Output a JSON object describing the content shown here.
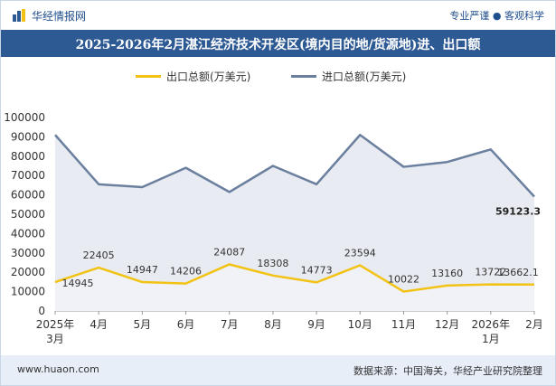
{
  "header": {
    "brand": "华经情报网",
    "tagline": "专业严谨 ● 客观科学"
  },
  "title": "2025-2026年2月湛江经济技术开发区(境内目的地/货源地)进、出口额",
  "footer": {
    "url": "www.huaon.com",
    "source": "数据来源：中国海关，华经产业研究院整理"
  },
  "colors": {
    "export": "#f2c314",
    "import": "#6b7f9e",
    "area_fill": "#e4e8ef",
    "title_bg": "#2e5a94",
    "footer_bg": "#e7eef8"
  },
  "chart_data": {
    "type": "line",
    "categories": [
      "2025年3月",
      "4月",
      "5月",
      "6月",
      "7月",
      "8月",
      "9月",
      "10月",
      "11月",
      "12月",
      "2026年1月",
      "2月"
    ],
    "series": [
      {
        "name": "出口总额(万美元)",
        "values": [
          14945,
          22405,
          14947,
          14206,
          24087,
          18308,
          14773,
          23594,
          10022,
          13160,
          13722,
          13662.1
        ],
        "labels": [
          "14945",
          "22405",
          "14947",
          "14206",
          "24087",
          "18308",
          "14773",
          "23594",
          "10022",
          "13160",
          "13722",
          "13662.1"
        ]
      },
      {
        "name": "进口总额(万美元)",
        "values": [
          91000,
          65500,
          64000,
          74000,
          61500,
          75000,
          65500,
          91000,
          74500,
          77000,
          83500,
          59123.3
        ],
        "labels": [
          "",
          "",
          "",
          "",
          "",
          "",
          "",
          "",
          "",
          "",
          "",
          "59123.3"
        ]
      }
    ],
    "yticks": [
      "0",
      "10000",
      "20000",
      "30000",
      "40000",
      "50000",
      "60000",
      "70000",
      "80000",
      "90000",
      "100000"
    ],
    "ylim": [
      0,
      100000
    ],
    "legend": "top-center",
    "grid": false
  }
}
